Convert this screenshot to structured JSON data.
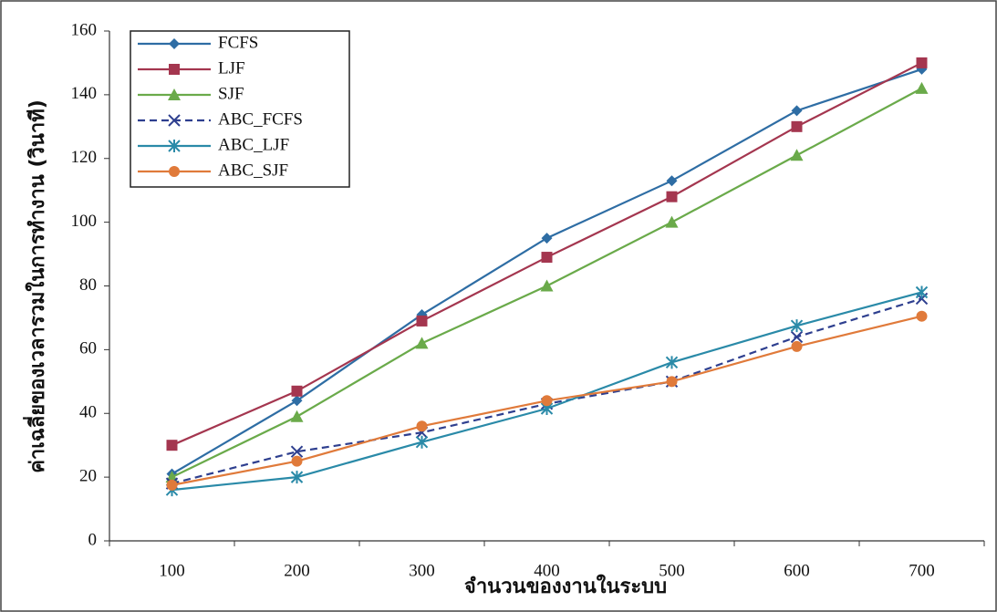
{
  "chart_data": {
    "type": "line",
    "x_label": "จำนวนของงานในระบบ",
    "y_label": "ค่าเฉลี่ยของเวลารวมในการทำงาน (วินาที)",
    "categories": [
      "100",
      "200",
      "300",
      "400",
      "500",
      "600",
      "700"
    ],
    "ylim": [
      0,
      160
    ],
    "yticks": [
      0,
      20,
      40,
      60,
      80,
      100,
      120,
      140,
      160
    ],
    "grid": false,
    "legend": "upper left",
    "series": [
      {
        "name": "FCFS",
        "color": "#2e6da4",
        "marker": "diamond",
        "dash": false,
        "values": [
          21,
          44,
          71,
          95,
          113,
          135,
          148
        ]
      },
      {
        "name": "LJF",
        "color": "#a4364f",
        "marker": "square",
        "dash": false,
        "values": [
          30,
          47,
          69,
          89,
          108,
          130,
          150
        ]
      },
      {
        "name": "SJF",
        "color": "#6aaa4a",
        "marker": "triangle",
        "dash": false,
        "values": [
          20,
          39,
          62,
          80,
          100,
          121,
          142
        ]
      },
      {
        "name": "ABC_FCFS",
        "color": "#2e3f8f",
        "marker": "x",
        "dash": true,
        "values": [
          18,
          28,
          34,
          43,
          50,
          64,
          76
        ]
      },
      {
        "name": "ABC_LJF",
        "color": "#2a8aa8",
        "marker": "star",
        "dash": false,
        "values": [
          16,
          20,
          31,
          41.5,
          56,
          67.5,
          78
        ]
      },
      {
        "name": "ABC_SJF",
        "color": "#e07a3a",
        "marker": "circle",
        "dash": false,
        "values": [
          17.5,
          25,
          36,
          44,
          50,
          61,
          70.5
        ]
      }
    ]
  }
}
